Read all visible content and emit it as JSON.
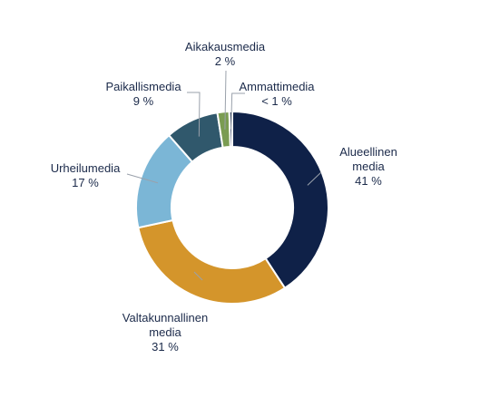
{
  "chart_data": {
    "type": "pie",
    "donut": true,
    "title": "",
    "legend": "none",
    "slices": [
      {
        "name": "Alueellinen media",
        "value": 41,
        "value_label": "41 %",
        "color": "#0f2148"
      },
      {
        "name": "Valtakunnallinen media",
        "value": 31,
        "value_label": "31 %",
        "color": "#d4952b"
      },
      {
        "name": "Urheilumedia",
        "value": 17,
        "value_label": "17 %",
        "color": "#7bb6d6"
      },
      {
        "name": "Paikallismedia",
        "value": 9,
        "value_label": "9 %",
        "color": "#30586c"
      },
      {
        "name": "Aikakausmedia",
        "value": 2,
        "value_label": "2 %",
        "color": "#7a9c52"
      },
      {
        "name": "Ammattimedia",
        "value": 0.5,
        "value_label": "< 1 %",
        "color": "#0e1f45"
      }
    ]
  },
  "labels": [
    {
      "lines": [
        "Alueellinen",
        "media",
        "41 %"
      ]
    },
    {
      "lines": [
        "Valtakunnallinen",
        "media",
        "31 %"
      ]
    },
    {
      "lines": [
        "Urheilumedia",
        "17 %"
      ]
    },
    {
      "lines": [
        "Paikallismedia",
        "9 %"
      ]
    },
    {
      "lines": [
        "Aikakausmedia",
        "2 %"
      ]
    },
    {
      "lines": [
        "Ammattimedia",
        "< 1 %"
      ]
    }
  ]
}
